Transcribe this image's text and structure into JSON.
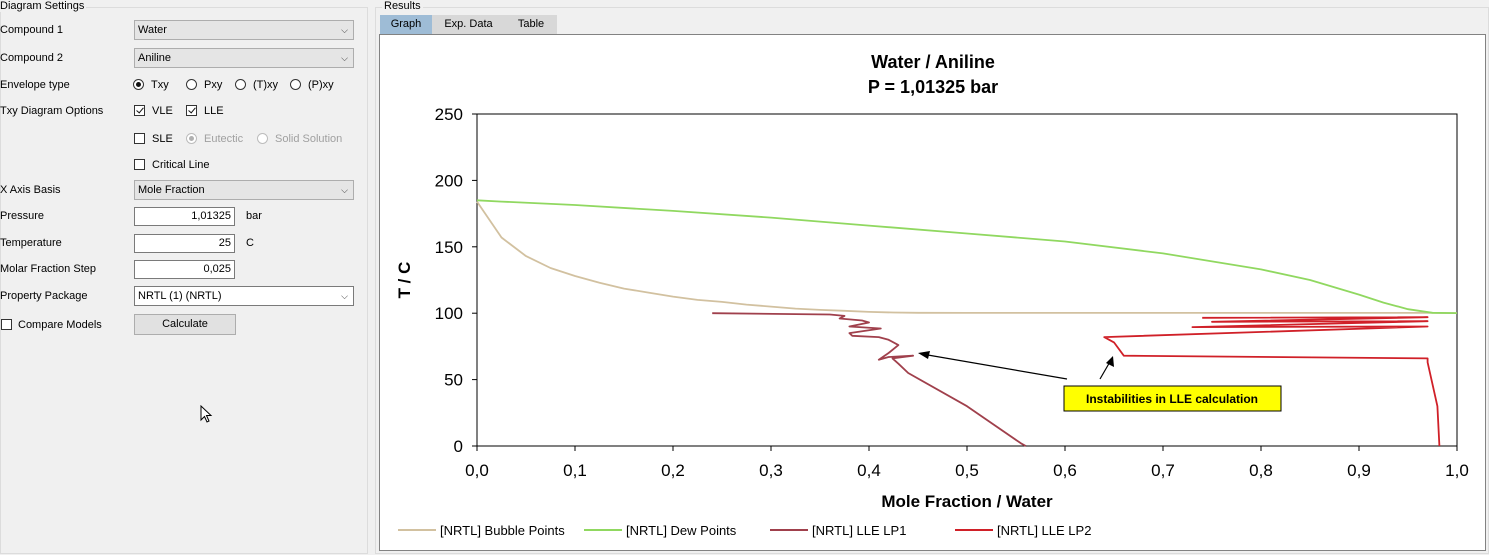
{
  "settings": {
    "group_title": "Diagram Settings",
    "compound1": {
      "label": "Compound 1",
      "value": "Water"
    },
    "compound2": {
      "label": "Compound 2",
      "value": "Aniline"
    },
    "envelope": {
      "label": "Envelope type",
      "options": [
        "Txy",
        "Pxy",
        "(T)xy",
        "(P)xy"
      ],
      "selected": "Txy"
    },
    "txy_options": {
      "label": "Txy Diagram Options",
      "vle": "VLE",
      "lle": "LLE",
      "sle": "SLE",
      "eutectic": "Eutectic",
      "solid_solution": "Solid Solution",
      "critical_line": "Critical Line"
    },
    "x_axis_basis": {
      "label": "X Axis Basis",
      "value": "Mole Fraction"
    },
    "pressure": {
      "label": "Pressure",
      "value": "1,01325",
      "unit": "bar"
    },
    "temperature": {
      "label": "Temperature",
      "value": "25",
      "unit": "C"
    },
    "step": {
      "label": "Molar Fraction Step",
      "value": "0,025"
    },
    "property_package": {
      "label": "Property Package",
      "value": "NRTL (1) (NRTL)"
    },
    "compare_models": "Compare Models",
    "calculate": "Calculate"
  },
  "results": {
    "group_title": "Results",
    "tabs": [
      "Graph",
      "Exp. Data",
      "Table"
    ],
    "active_tab": "Graph"
  },
  "chart_data": {
    "type": "line",
    "title": "Water / Aniline",
    "subtitle": "P = 1,01325 bar",
    "xlabel": "Mole Fraction / Water",
    "ylabel": "T / C",
    "xlim": [
      0,
      1
    ],
    "ylim": [
      0,
      250
    ],
    "xticks": [
      "0,0",
      "0,1",
      "0,2",
      "0,3",
      "0,4",
      "0,5",
      "0,6",
      "0,7",
      "0,8",
      "0,9",
      "1,0"
    ],
    "yticks": [
      "0",
      "50",
      "100",
      "150",
      "200",
      "250"
    ],
    "grid": false,
    "legend_position": "bottom",
    "annotation": "Instabilities in LLE calculation",
    "series": [
      {
        "name": "[NRTL] Bubble Points",
        "color": "#d2c1a0",
        "x": [
          0,
          0.025,
          0.05,
          0.075,
          0.1,
          0.125,
          0.15,
          0.175,
          0.2,
          0.225,
          0.25,
          0.275,
          0.3,
          0.325,
          0.35,
          0.375,
          0.4,
          0.425,
          0.45,
          0.5,
          0.6,
          0.7,
          0.8,
          0.9,
          0.975,
          1.0
        ],
        "y": [
          184,
          157,
          143,
          134,
          128,
          123,
          118.5,
          115.5,
          112.5,
          110,
          108.5,
          106.5,
          105,
          103.5,
          102.5,
          101.8,
          101,
          100.5,
          100.3,
          100.2,
          100.2,
          100.2,
          100.2,
          100.2,
          100.2,
          100.1
        ]
      },
      {
        "name": "[NRTL] Dew Points",
        "color": "#90d860",
        "x": [
          0,
          0.025,
          0.1,
          0.2,
          0.3,
          0.4,
          0.5,
          0.6,
          0.7,
          0.8,
          0.85,
          0.9,
          0.925,
          0.95,
          0.975,
          1.0
        ],
        "y": [
          185,
          184,
          181.5,
          177,
          172,
          166,
          160,
          154,
          145,
          133,
          125,
          114,
          108,
          103,
          100.3,
          100.1
        ]
      },
      {
        "name": "[NRTL] LLE LP1",
        "color": "#a0404c",
        "x": [
          0.24,
          0.36,
          0.375,
          0.37,
          0.393,
          0.4,
          0.38,
          0.412,
          0.38,
          0.383,
          0.41,
          0.42,
          0.43,
          0.42,
          0.41,
          0.42,
          0.445,
          0.424,
          0.43,
          0.44,
          0.5,
          0.555,
          0.56
        ],
        "y": [
          100,
          99,
          98,
          96,
          94.5,
          93,
          90,
          88.5,
          85,
          83,
          82,
          80,
          76,
          70,
          65,
          67,
          68,
          66,
          62,
          55,
          30,
          2,
          0
        ]
      },
      {
        "name": "[NRTL] LLE LP2",
        "color": "#d02028",
        "x": [
          0.74,
          0.97,
          0.75,
          0.97,
          0.73,
          0.97,
          0.64,
          0.65,
          0.66,
          0.97,
          0.97,
          0.98,
          0.982
        ],
        "y": [
          96.5,
          97,
          93.5,
          94,
          89.5,
          90,
          82,
          78,
          68,
          66,
          63,
          30,
          0
        ]
      }
    ]
  }
}
